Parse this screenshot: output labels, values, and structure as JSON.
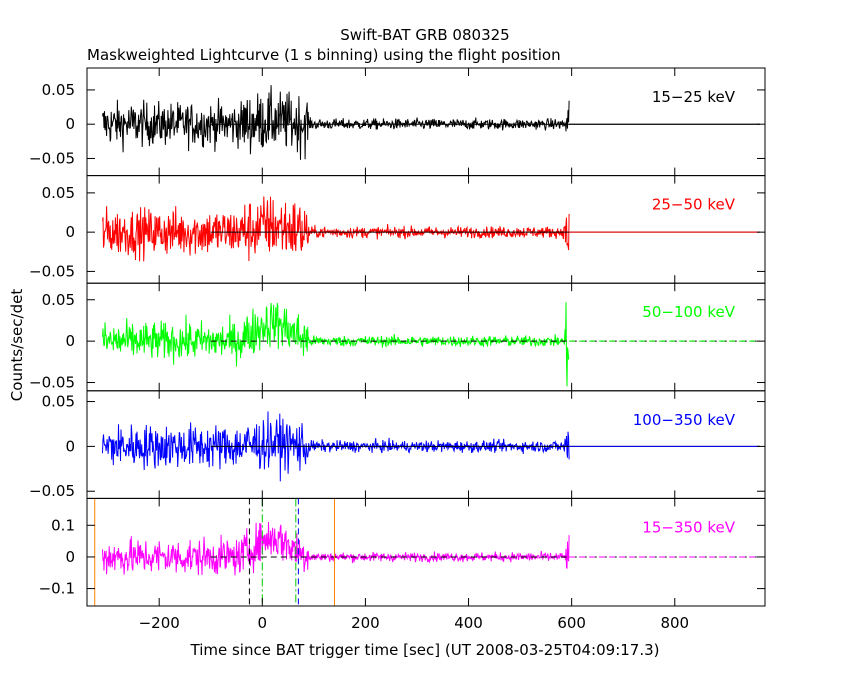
{
  "chart_data": {
    "type": "line",
    "title": "Swift-BAT GRB 080325",
    "subtitle": "Maskweighted Lightcurve (1 s binning) using the flight position",
    "xlabel": "Time since BAT trigger time [sec] (UT 2008-03-25T04:09:17.3)",
    "ylabel": "Counts/sec/det",
    "xlim": [
      -340,
      975
    ],
    "xticks": [
      -200,
      0,
      200,
      400,
      600,
      800
    ],
    "xtick_labels": [
      "−200",
      "0",
      "200",
      "400",
      "600",
      "800"
    ],
    "data_range": [
      -310,
      595
    ],
    "panels": [
      {
        "band": "15−25 keV",
        "color": "#000000",
        "ylim": [
          -0.075,
          0.082
        ],
        "yticks": [
          -0.05,
          0,
          0.05
        ],
        "ytick_labels": [
          "−0.05",
          "0",
          "0.05"
        ],
        "baseline_style": "solid",
        "pre_noise": 0.022,
        "burst_noise": 0.03,
        "post_noise": 0.0055,
        "end_spike": 0.035,
        "burst_mean": 0.005
      },
      {
        "band": "25−50 keV",
        "color": "#ff0000",
        "ylim": [
          -0.065,
          0.072
        ],
        "yticks": [
          -0.05,
          0,
          0.05
        ],
        "ytick_labels": [
          "−0.05",
          "0",
          "0.05"
        ],
        "baseline_style": "solid",
        "pre_noise": 0.021,
        "burst_noise": 0.028,
        "post_noise": 0.005,
        "end_spike": 0.04,
        "burst_mean": 0.008
      },
      {
        "band": "50−100 keV",
        "color": "#00ff00",
        "ylim": [
          -0.06,
          0.07
        ],
        "yticks": [
          -0.05,
          0,
          0.05
        ],
        "ytick_labels": [
          "−0.05",
          "0",
          "0.05"
        ],
        "baseline_style": "dashed",
        "pre_noise": 0.016,
        "burst_noise": 0.02,
        "post_noise": 0.0045,
        "end_spike": 0.06,
        "burst_mean": 0.022
      },
      {
        "band": "100−350 keV",
        "color": "#0000ff",
        "ylim": [
          -0.058,
          0.062
        ],
        "yticks": [
          -0.05,
          0,
          0.05
        ],
        "ytick_labels": [
          "−0.05",
          "0",
          "0.05"
        ],
        "baseline_style": "solid",
        "pre_noise": 0.017,
        "burst_noise": 0.02,
        "post_noise": 0.0045,
        "end_spike": 0.025,
        "burst_mean": 0.004
      },
      {
        "band": "15−350 keV",
        "color": "#ff00ff",
        "ylim": [
          -0.155,
          0.185
        ],
        "yticks": [
          -0.1,
          0,
          0.1
        ],
        "ytick_labels": [
          "−0.1",
          "0",
          "0.1"
        ],
        "baseline_style": "dashed",
        "pre_noise": 0.04,
        "burst_noise": 0.045,
        "post_noise": 0.01,
        "end_spike": 0.045,
        "burst_mean": 0.06
      }
    ],
    "markers": [
      {
        "x": -325,
        "color": "#ff8000",
        "style": "solid"
      },
      {
        "x": 140,
        "color": "#ff8000",
        "style": "solid"
      },
      {
        "x": -25,
        "color": "#000000",
        "style": "dashed"
      },
      {
        "x": 0,
        "color": "#00cc00",
        "style": "dashdot"
      },
      {
        "x": 65,
        "color": "#00cc00",
        "style": "dashdot"
      },
      {
        "x": 70,
        "color": "#0000ff",
        "style": "dashed"
      }
    ]
  }
}
